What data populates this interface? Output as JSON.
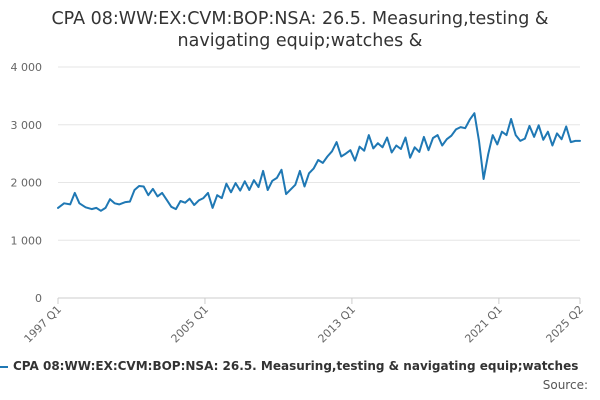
{
  "chart_data": {
    "type": "line",
    "title_line1": "CPA 08:WW:EX:CVM:BOP:NSA: 26.5. Measuring,testing &",
    "title_line2": "navigating equip;watches &",
    "xlabel": "",
    "ylabel": "",
    "ylim": [
      0,
      4000
    ],
    "yticks": [
      0,
      1000,
      2000,
      3000,
      4000
    ],
    "ytick_labels": [
      "0",
      "1 000",
      "2 000",
      "3 000",
      "4 000"
    ],
    "xticks": [
      "1997 Q1",
      "2005 Q1",
      "2013 Q1",
      "2021 Q1",
      "2025 Q2"
    ],
    "xtick_indices": [
      0,
      96,
      192,
      288,
      341
    ],
    "grid": "horizontal",
    "legend_position": "bottom-left",
    "color": "#1f78b4",
    "series": [
      {
        "name": "CPA 08:WW:EX:CVM:BOP:NSA: 26.5. Measuring,testing & navigating equip;watches",
        "anchors": [
          [
            0,
            1560
          ],
          [
            4,
            1640
          ],
          [
            8,
            1620
          ],
          [
            11,
            1820
          ],
          [
            14,
            1640
          ],
          [
            18,
            1570
          ],
          [
            22,
            1540
          ],
          [
            25,
            1560
          ],
          [
            28,
            1510
          ],
          [
            31,
            1560
          ],
          [
            34,
            1710
          ],
          [
            37,
            1640
          ],
          [
            40,
            1620
          ],
          [
            44,
            1660
          ],
          [
            47,
            1670
          ],
          [
            50,
            1870
          ],
          [
            53,
            1940
          ],
          [
            56,
            1930
          ],
          [
            59,
            1780
          ],
          [
            62,
            1890
          ],
          [
            65,
            1760
          ],
          [
            68,
            1820
          ],
          [
            71,
            1700
          ],
          [
            74,
            1580
          ],
          [
            77,
            1540
          ],
          [
            80,
            1680
          ],
          [
            83,
            1650
          ],
          [
            86,
            1720
          ],
          [
            89,
            1610
          ],
          [
            92,
            1690
          ],
          [
            95,
            1730
          ],
          [
            98,
            1820
          ],
          [
            101,
            1560
          ],
          [
            104,
            1780
          ],
          [
            107,
            1730
          ],
          [
            110,
            1980
          ],
          [
            113,
            1830
          ],
          [
            116,
            1990
          ],
          [
            119,
            1860
          ],
          [
            122,
            2020
          ],
          [
            125,
            1870
          ],
          [
            128,
            2040
          ],
          [
            131,
            1920
          ],
          [
            134,
            2200
          ],
          [
            137,
            1870
          ],
          [
            140,
            2030
          ],
          [
            143,
            2080
          ],
          [
            146,
            2220
          ],
          [
            149,
            1800
          ],
          [
            152,
            1880
          ],
          [
            155,
            1960
          ],
          [
            158,
            2200
          ],
          [
            161,
            1930
          ],
          [
            164,
            2160
          ],
          [
            167,
            2240
          ],
          [
            170,
            2390
          ],
          [
            173,
            2340
          ],
          [
            176,
            2450
          ],
          [
            179,
            2540
          ],
          [
            182,
            2700
          ],
          [
            185,
            2450
          ],
          [
            188,
            2500
          ],
          [
            191,
            2560
          ],
          [
            194,
            2380
          ],
          [
            197,
            2620
          ],
          [
            200,
            2550
          ],
          [
            203,
            2820
          ],
          [
            206,
            2590
          ],
          [
            209,
            2680
          ],
          [
            212,
            2610
          ],
          [
            215,
            2780
          ],
          [
            218,
            2520
          ],
          [
            221,
            2640
          ],
          [
            224,
            2580
          ],
          [
            227,
            2780
          ],
          [
            230,
            2430
          ],
          [
            233,
            2610
          ],
          [
            236,
            2530
          ],
          [
            239,
            2790
          ],
          [
            242,
            2560
          ],
          [
            245,
            2770
          ],
          [
            248,
            2820
          ],
          [
            251,
            2640
          ],
          [
            254,
            2750
          ],
          [
            257,
            2810
          ],
          [
            260,
            2920
          ],
          [
            263,
            2960
          ],
          [
            266,
            2940
          ],
          [
            269,
            3090
          ],
          [
            272,
            3200
          ],
          [
            275,
            2720
          ],
          [
            278,
            2060
          ],
          [
            281,
            2490
          ],
          [
            284,
            2820
          ],
          [
            287,
            2660
          ],
          [
            290,
            2880
          ],
          [
            293,
            2820
          ],
          [
            296,
            3100
          ],
          [
            299,
            2820
          ],
          [
            302,
            2720
          ],
          [
            305,
            2760
          ],
          [
            308,
            2980
          ],
          [
            311,
            2790
          ],
          [
            314,
            2990
          ],
          [
            317,
            2740
          ],
          [
            320,
            2880
          ],
          [
            323,
            2640
          ],
          [
            326,
            2850
          ],
          [
            329,
            2750
          ],
          [
            332,
            2970
          ],
          [
            335,
            2700
          ],
          [
            338,
            2720
          ],
          [
            341,
            2720
          ]
        ]
      }
    ]
  },
  "source_label": "Source:"
}
